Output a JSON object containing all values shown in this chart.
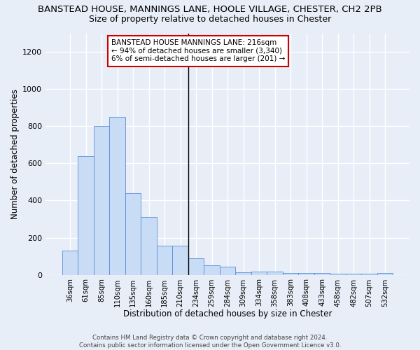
{
  "title": "BANSTEAD HOUSE, MANNINGS LANE, HOOLE VILLAGE, CHESTER, CH2 2PB",
  "subtitle": "Size of property relative to detached houses in Chester",
  "xlabel": "Distribution of detached houses by size in Chester",
  "ylabel": "Number of detached properties",
  "bar_labels": [
    "36sqm",
    "61sqm",
    "85sqm",
    "110sqm",
    "135sqm",
    "160sqm",
    "185sqm",
    "210sqm",
    "234sqm",
    "259sqm",
    "284sqm",
    "309sqm",
    "334sqm",
    "358sqm",
    "383sqm",
    "408sqm",
    "433sqm",
    "458sqm",
    "482sqm",
    "507sqm",
    "532sqm"
  ],
  "bar_values": [
    130,
    640,
    800,
    850,
    440,
    310,
    155,
    155,
    90,
    50,
    42,
    15,
    18,
    16,
    10,
    8,
    8,
    5,
    5,
    5,
    10
  ],
  "bar_color": "#c9dcf5",
  "bar_edge_color": "#5b8dd9",
  "vline_color": "#000000",
  "vline_index": 7.5,
  "annotation_text": "BANSTEAD HOUSE MANNINGS LANE: 216sqm\n← 94% of detached houses are smaller (3,340)\n6% of semi-detached houses are larger (201) →",
  "annotation_box_color": "#ffffff",
  "annotation_box_edge": "#cc0000",
  "footer": "Contains HM Land Registry data © Crown copyright and database right 2024.\nContains public sector information licensed under the Open Government Licence v3.0.",
  "ylim": [
    0,
    1300
  ],
  "yticks": [
    0,
    200,
    400,
    600,
    800,
    1000,
    1200
  ],
  "bg_color": "#e8eef8",
  "plot_bg_color": "#e8eef8",
  "grid_color": "#ffffff",
  "title_fontsize": 9.5,
  "subtitle_fontsize": 9
}
